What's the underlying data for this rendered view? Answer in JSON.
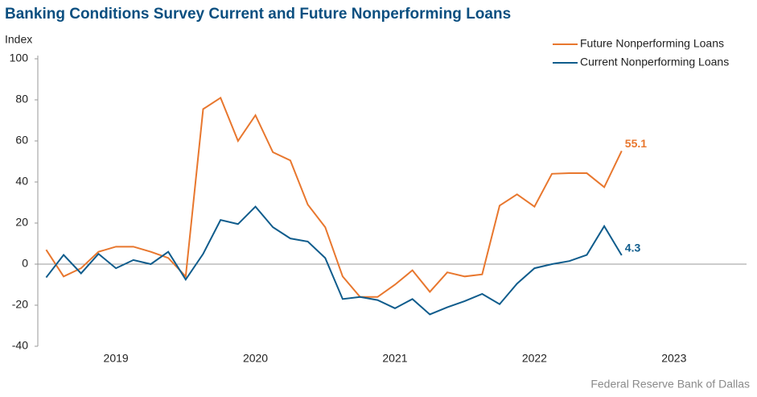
{
  "chart_data": {
    "type": "line",
    "title": "Banking Conditions Survey Current and Future Nonperforming Loans",
    "y_label": "Index",
    "source": "Federal Reserve Bank of Dallas",
    "x": [
      2018.5,
      2018.625,
      2018.75,
      2018.875,
      2019,
      2019.125,
      2019.25,
      2019.375,
      2019.5,
      2019.625,
      2019.75,
      2019.875,
      2020,
      2020.125,
      2020.25,
      2020.375,
      2020.5,
      2020.625,
      2020.75,
      2020.875,
      2021,
      2021.125,
      2021.25,
      2021.375,
      2021.5,
      2021.625,
      2021.75,
      2021.875,
      2022,
      2022.125,
      2022.25,
      2022.375,
      2022.5,
      2022.625
    ],
    "series": [
      {
        "name": "Future Nonperforming Loans",
        "color": "#e8772e",
        "values": [
          7,
          -6,
          -2,
          6,
          8.5,
          8.5,
          6,
          3,
          -6,
          75.5,
          81,
          60,
          72.5,
          54.5,
          50.5,
          29,
          18,
          -6,
          -16,
          -16,
          -10,
          -3,
          -13.5,
          -4,
          -6,
          -5,
          28.5,
          34,
          28,
          44,
          44.3,
          44.3,
          37.5,
          55.1
        ]
      },
      {
        "name": "Current Nonperforming Loans",
        "color": "#0f5c8c",
        "values": [
          -6.5,
          4.5,
          -4.5,
          5,
          -2,
          2,
          0,
          6,
          -7.5,
          5,
          21.5,
          19.5,
          28,
          18,
          12.5,
          11,
          3,
          -17,
          -16,
          -17.5,
          -21.5,
          -17,
          -24.5,
          -21,
          -18,
          -14.5,
          -19.5,
          -9.5,
          -2,
          0,
          1.5,
          4.5,
          18.5,
          4.3
        ]
      }
    ],
    "xlim": [
      2018.44,
      2023.52
    ],
    "xticks": [
      2019,
      2020,
      2021,
      2022,
      2023
    ],
    "ylim": [
      -40,
      100
    ],
    "yticks": [
      -40,
      -20,
      0,
      20,
      40,
      60,
      80,
      100
    ],
    "legend": "top-right"
  }
}
